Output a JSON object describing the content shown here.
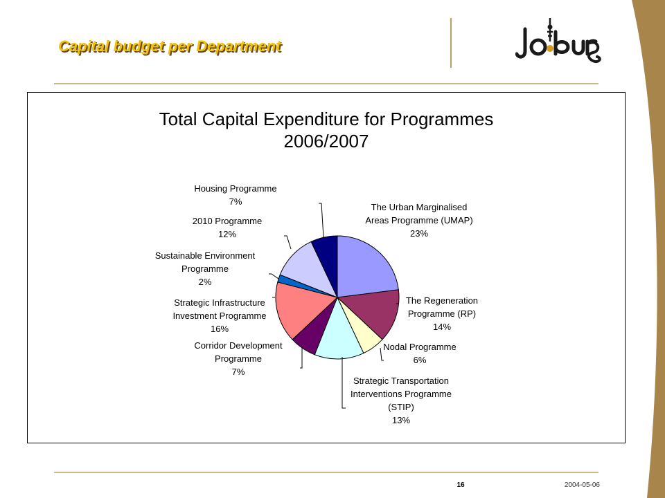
{
  "slide": {
    "title": "Capital budget per Department",
    "page_number": "16",
    "date": "2004-05-06"
  },
  "logo": {
    "text": "Joburg"
  },
  "colors": {
    "title_yellow": "#f2c20a",
    "title_shadow": "#6b4a10",
    "swoosh": "#a8854a",
    "rule": "#c8b88a"
  },
  "chart_data": {
    "type": "pie",
    "title": [
      "Total Capital Expenditure for Programmes",
      "2006/2007"
    ],
    "slices": [
      {
        "label": [
          "The Urban Marginalised",
          "Areas Programme (UMAP)"
        ],
        "value": 23,
        "value_label": "23%",
        "color": "#9999ff"
      },
      {
        "label": [
          "The Regeneration",
          "Programme (RP)"
        ],
        "value": 14,
        "value_label": "14%",
        "color": "#993366"
      },
      {
        "label": [
          "Nodal Programme"
        ],
        "value": 6,
        "value_label": "6%",
        "color": "#ffffcc"
      },
      {
        "label": [
          "Strategic Transportation",
          "Interventions Programme",
          "(STIP)"
        ],
        "value": 13,
        "value_label": "13%",
        "color": "#ccffff"
      },
      {
        "label": [
          "Corridor Development",
          "Programme"
        ],
        "value": 7,
        "value_label": "7%",
        "color": "#660066"
      },
      {
        "label": [
          "Strategic Infrastructure",
          "Investment Programme"
        ],
        "value": 16,
        "value_label": "16%",
        "color": "#ff8080"
      },
      {
        "label": [
          "Sustainable Environment",
          "Programme"
        ],
        "value": 2,
        "value_label": "2%",
        "color": "#0066cc"
      },
      {
        "label": [
          "2010 Programme"
        ],
        "value": 12,
        "value_label": "12%",
        "color": "#ccccff"
      },
      {
        "label": [
          "Housing Programme"
        ],
        "value": 7,
        "value_label": "7%",
        "color": "#000080"
      }
    ]
  }
}
